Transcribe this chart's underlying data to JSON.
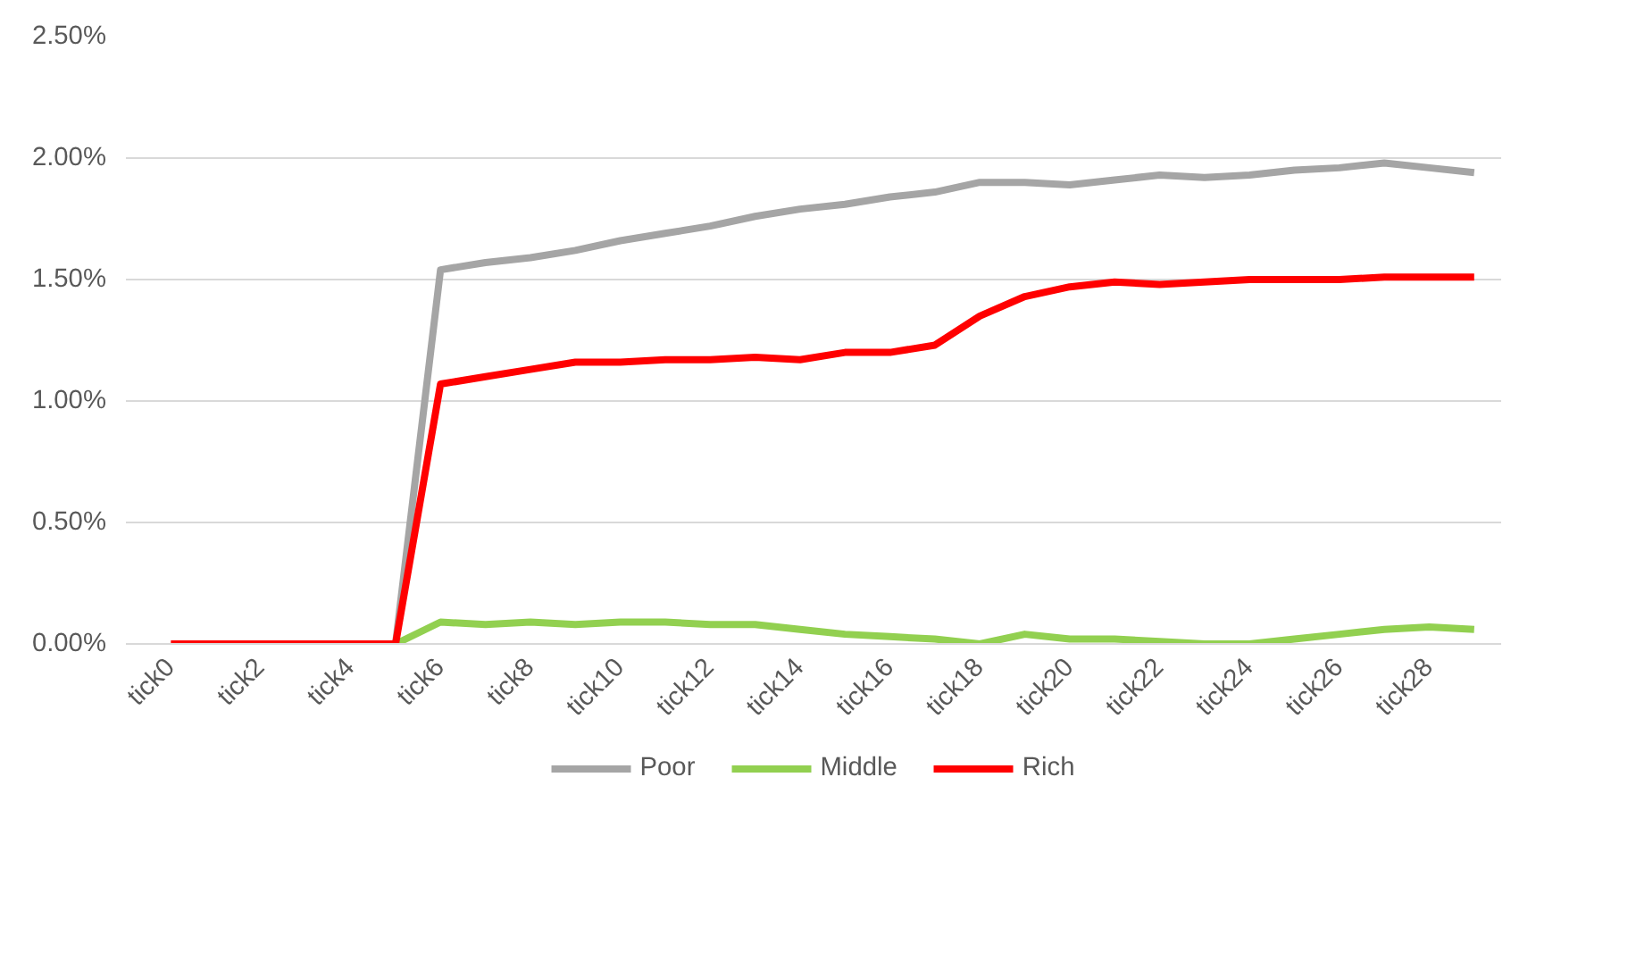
{
  "chart_data": {
    "type": "line",
    "categories": [
      "tick0",
      null,
      "tick2",
      null,
      "tick4",
      null,
      "tick6",
      null,
      "tick8",
      null,
      "tick10",
      null,
      "tick12",
      null,
      "tick14",
      null,
      "tick16",
      null,
      "tick18",
      null,
      "tick20",
      null,
      "tick22",
      null,
      "tick24",
      null,
      "tick26",
      null,
      "tick28",
      null
    ],
    "series": [
      {
        "name": "Poor",
        "color": "#a5a5a5",
        "values": [
          null,
          null,
          null,
          null,
          null,
          0,
          1.54,
          1.57,
          1.59,
          1.62,
          1.66,
          1.69,
          1.72,
          1.76,
          1.79,
          1.81,
          1.84,
          1.86,
          1.9,
          1.9,
          1.89,
          1.91,
          1.93,
          1.92,
          1.93,
          1.95,
          1.96,
          1.98,
          1.96,
          1.94
        ]
      },
      {
        "name": "Middle",
        "color": "#92d050",
        "values": [
          null,
          null,
          null,
          null,
          null,
          0,
          0.09,
          0.08,
          0.09,
          0.08,
          0.09,
          0.09,
          0.08,
          0.08,
          0.06,
          0.04,
          0.03,
          0.02,
          0.0,
          0.04,
          0.02,
          0.02,
          0.01,
          0.0,
          0.0,
          0.02,
          0.04,
          0.06,
          0.07,
          0.06
        ]
      },
      {
        "name": "Rich",
        "color": "#ff0000",
        "values": [
          0,
          0,
          0,
          0,
          0,
          0,
          1.07,
          1.1,
          1.13,
          1.16,
          1.16,
          1.17,
          1.17,
          1.18,
          1.17,
          1.2,
          1.2,
          1.23,
          1.35,
          1.43,
          1.47,
          1.49,
          1.48,
          1.49,
          1.5,
          1.5,
          1.5,
          1.51,
          1.51,
          1.51
        ]
      }
    ],
    "ylim": [
      0,
      2.5
    ],
    "yticks": [
      {
        "value": 0,
        "label": "0.00%"
      },
      {
        "value": 0.5,
        "label": "0.50%"
      },
      {
        "value": 1,
        "label": "1.00%"
      },
      {
        "value": 1.5,
        "label": "1.50%"
      },
      {
        "value": 2,
        "label": "2.00%"
      },
      {
        "value": 2.5,
        "label": "2.50%"
      }
    ],
    "grid": "y",
    "legend": "bottom",
    "marker": "none",
    "line_style": "solid"
  }
}
